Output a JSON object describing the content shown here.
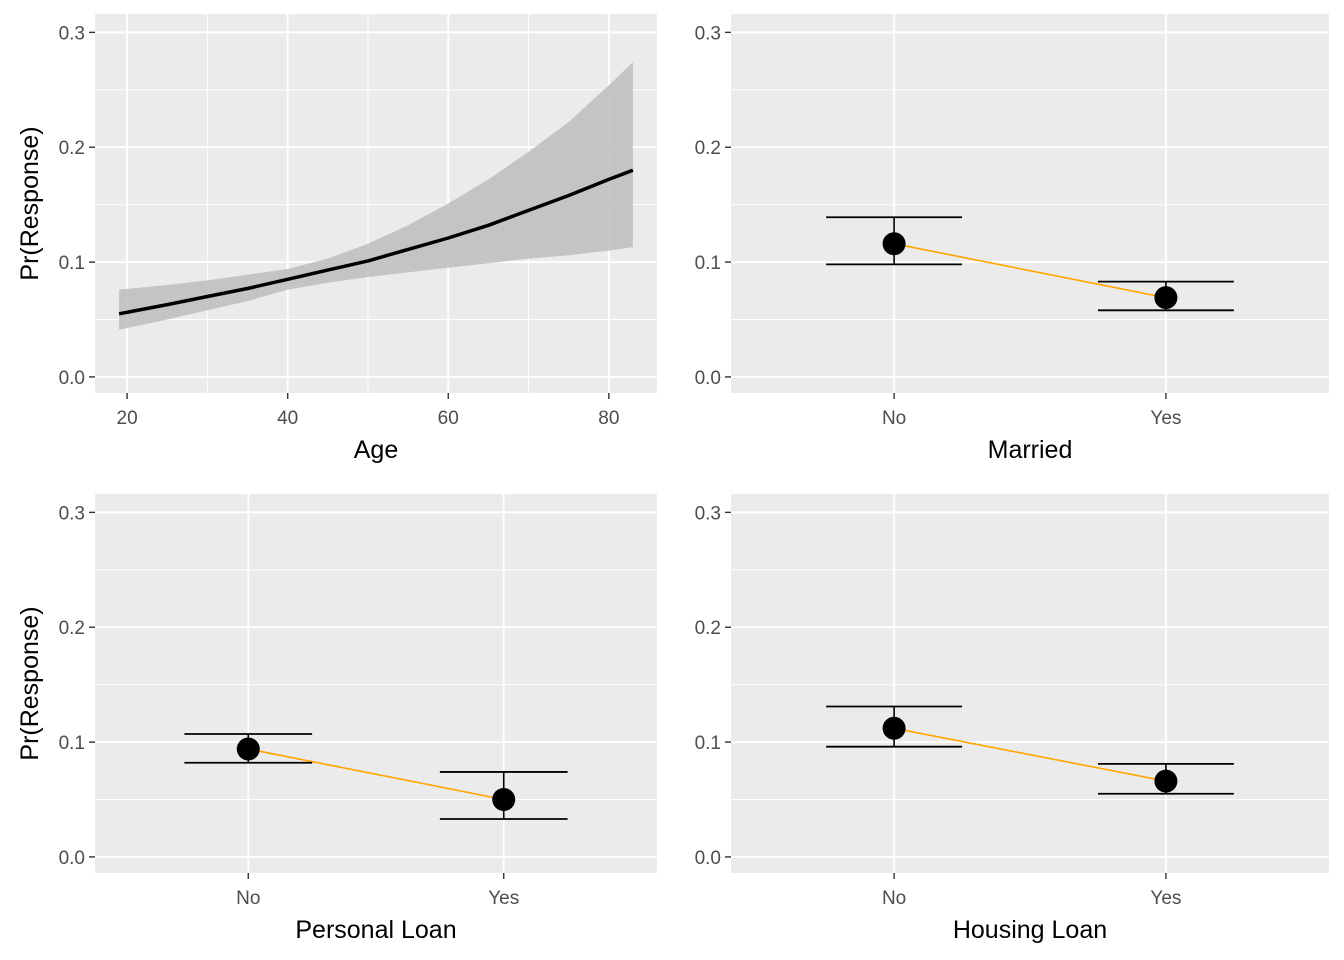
{
  "colors": {
    "panel_bg": "#ebebeb",
    "grid_major": "#ffffff",
    "ribbon": "#bdbdbd",
    "line": "#000000",
    "connector": "#ffa500",
    "tick_text": "#4d4d4d"
  },
  "chart_data": [
    {
      "type": "line",
      "xlabel": "Age",
      "ylabel": "Pr(Response)",
      "xlim": [
        16,
        86
      ],
      "ylim": [
        -0.014,
        0.316
      ],
      "xticks": [
        20,
        40,
        60,
        80
      ],
      "yticks": [
        0.0,
        0.1,
        0.2,
        0.3
      ],
      "xtick_labels": [
        "20",
        "40",
        "60",
        "80"
      ],
      "ytick_labels": [
        "0.0",
        "0.1",
        "0.2",
        "0.3"
      ],
      "grid": true,
      "x": [
        19,
        25,
        30,
        35,
        40,
        45,
        50,
        55,
        60,
        65,
        70,
        75,
        80,
        83
      ],
      "y": [
        0.055,
        0.063,
        0.07,
        0.077,
        0.085,
        0.093,
        0.101,
        0.111,
        0.121,
        0.132,
        0.145,
        0.158,
        0.172,
        0.18
      ],
      "lower": [
        0.041,
        0.05,
        0.058,
        0.066,
        0.076,
        0.082,
        0.087,
        0.091,
        0.095,
        0.099,
        0.103,
        0.106,
        0.11,
        0.113
      ],
      "upper": [
        0.076,
        0.08,
        0.084,
        0.089,
        0.094,
        0.103,
        0.116,
        0.132,
        0.151,
        0.172,
        0.196,
        0.222,
        0.254,
        0.274
      ]
    },
    {
      "type": "scatter",
      "xlabel": "Married",
      "ylabel": "",
      "ylim": [
        -0.014,
        0.316
      ],
      "yticks": [
        0.0,
        0.1,
        0.2,
        0.3
      ],
      "ytick_labels": [
        "0.0",
        "0.1",
        "0.2",
        "0.3"
      ],
      "categories": [
        "No",
        "Yes"
      ],
      "values": [
        0.116,
        0.069
      ],
      "lower": [
        0.098,
        0.058
      ],
      "upper": [
        0.139,
        0.083
      ],
      "grid": true
    },
    {
      "type": "scatter",
      "xlabel": "Personal Loan",
      "ylabel": "Pr(Response)",
      "ylim": [
        -0.014,
        0.316
      ],
      "yticks": [
        0.0,
        0.1,
        0.2,
        0.3
      ],
      "ytick_labels": [
        "0.0",
        "0.1",
        "0.2",
        "0.3"
      ],
      "categories": [
        "No",
        "Yes"
      ],
      "values": [
        0.094,
        0.05
      ],
      "lower": [
        0.082,
        0.033
      ],
      "upper": [
        0.107,
        0.074
      ],
      "grid": true
    },
    {
      "type": "scatter",
      "xlabel": "Housing Loan",
      "ylabel": "",
      "ylim": [
        -0.014,
        0.316
      ],
      "yticks": [
        0.0,
        0.1,
        0.2,
        0.3
      ],
      "ytick_labels": [
        "0.0",
        "0.1",
        "0.2",
        "0.3"
      ],
      "categories": [
        "No",
        "Yes"
      ],
      "values": [
        0.112,
        0.066
      ],
      "lower": [
        0.096,
        0.055
      ],
      "upper": [
        0.131,
        0.081
      ],
      "grid": true
    }
  ]
}
